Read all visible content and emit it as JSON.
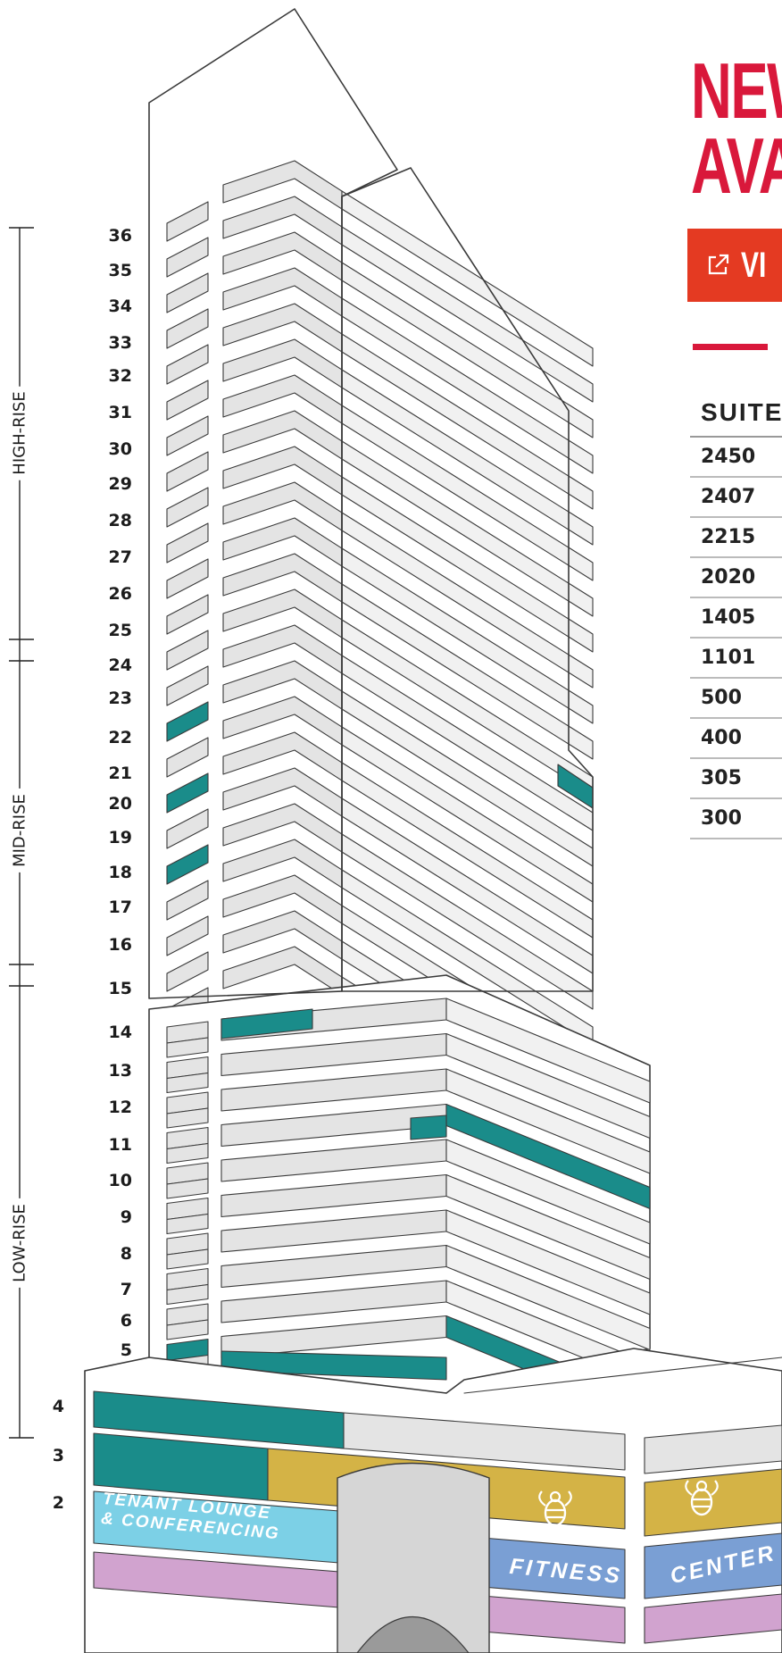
{
  "zones": {
    "high_rise": "HIGH-RISE",
    "mid_rise": "MID-RISE",
    "low_rise": "LOW-RISE"
  },
  "floors": [
    "36",
    "35",
    "34",
    "33",
    "32",
    "31",
    "30",
    "29",
    "28",
    "27",
    "26",
    "25",
    "24",
    "23",
    "22",
    "21",
    "20",
    "19",
    "18",
    "17",
    "16",
    "15",
    "14",
    "13",
    "12",
    "11",
    "10",
    "9",
    "8",
    "7",
    "6",
    "5",
    "4",
    "3",
    "2"
  ],
  "podium": {
    "tenant_lounge_line1": "TENANT LOUNGE",
    "tenant_lounge_line2": "& CONFERENCING",
    "fitness": "FITNESS",
    "center": "CENTER",
    "bee_icon": "bee-icon"
  },
  "headline": {
    "line1": "NEW",
    "line2": "AVA"
  },
  "view_button": {
    "label": "VI",
    "icon": "external-link-icon"
  },
  "suites": {
    "header": "SUITE",
    "rows": [
      "2450",
      "2407",
      "2215",
      "2020",
      "1405",
      "1101",
      "500",
      "400",
      "305",
      "300"
    ]
  },
  "colors": {
    "available": "#1a8c8a",
    "headline_red": "#d9183b",
    "button_orange": "#e43a22",
    "lounge_blue": "#7cd0e6",
    "fitness_blue": "#7a9fd4",
    "bee_gold": "#d4b346",
    "purple": "#d1a3cf"
  }
}
